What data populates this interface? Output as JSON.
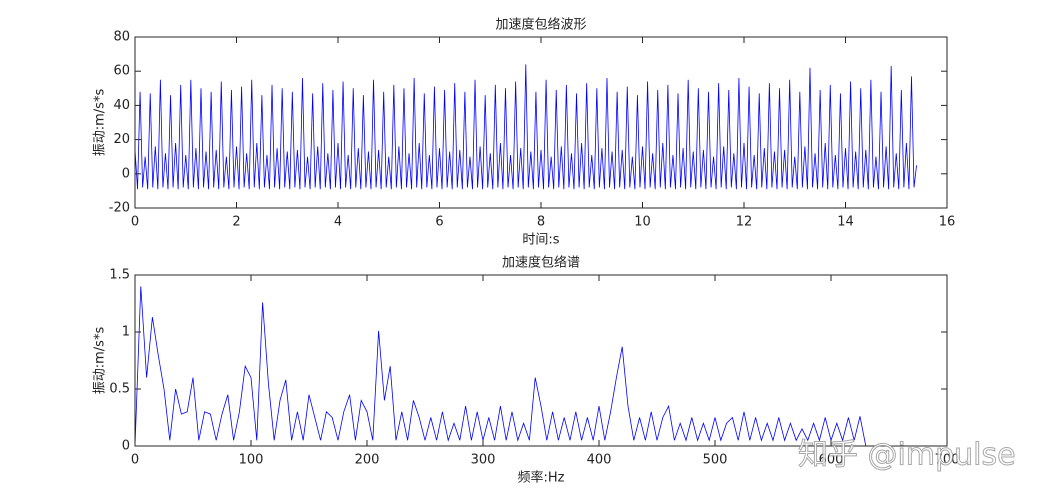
{
  "chart_data": [
    {
      "type": "line",
      "title": "加速度包络波形",
      "xlabel": "时间:s",
      "ylabel": "振动:m/s*s",
      "xlim": [
        0,
        16
      ],
      "ylim": [
        -20,
        80
      ],
      "xticks": [
        0,
        2,
        4,
        6,
        8,
        10,
        12,
        14,
        16
      ],
      "yticks": [
        -20,
        0,
        20,
        40,
        60,
        80
      ],
      "x": [
        0,
        0.05,
        0.1,
        0.15,
        0.2,
        0.25,
        0.3,
        0.35,
        0.4,
        0.45,
        0.5,
        0.55,
        0.6,
        0.65,
        0.7,
        0.75,
        0.8,
        0.85,
        0.9,
        0.95,
        1,
        1.05,
        1.1,
        1.15,
        1.2,
        1.25,
        1.3,
        1.35,
        1.4,
        1.45,
        1.5,
        1.55,
        1.6,
        1.65,
        1.7,
        1.75,
        1.8,
        1.85,
        1.9,
        1.95,
        2,
        2.05,
        2.1,
        2.15,
        2.2,
        2.25,
        2.3,
        2.35,
        2.4,
        2.45,
        2.5,
        2.55,
        2.6,
        2.65,
        2.7,
        2.75,
        2.8,
        2.85,
        2.9,
        2.95,
        3,
        3.05,
        3.1,
        3.15,
        3.2,
        3.25,
        3.3,
        3.35,
        3.4,
        3.45,
        3.5,
        3.55,
        3.6,
        3.65,
        3.7,
        3.75,
        3.8,
        3.85,
        3.9,
        3.95,
        4,
        4.05,
        4.1,
        4.15,
        4.2,
        4.25,
        4.3,
        4.35,
        4.4,
        4.45,
        4.5,
        4.55,
        4.6,
        4.65,
        4.7,
        4.75,
        4.8,
        4.85,
        4.9,
        4.95,
        5,
        5.05,
        5.1,
        5.15,
        5.2,
        5.25,
        5.3,
        5.35,
        5.4,
        5.45,
        5.5,
        5.55,
        5.6,
        5.65,
        5.7,
        5.75,
        5.8,
        5.85,
        5.9,
        5.95,
        6,
        6.05,
        6.1,
        6.15,
        6.2,
        6.25,
        6.3,
        6.35,
        6.4,
        6.45,
        6.5,
        6.55,
        6.6,
        6.65,
        6.7,
        6.75,
        6.8,
        6.85,
        6.9,
        6.95,
        7,
        7.05,
        7.1,
        7.15,
        7.2,
        7.25,
        7.3,
        7.35,
        7.4,
        7.45,
        7.5,
        7.55,
        7.6,
        7.65,
        7.7,
        7.75,
        7.8,
        7.85,
        7.9,
        7.95,
        8,
        8.05,
        8.1,
        8.15,
        8.2,
        8.25,
        8.3,
        8.35,
        8.4,
        8.45,
        8.5,
        8.55,
        8.6,
        8.65,
        8.7,
        8.75,
        8.8,
        8.85,
        8.9,
        8.95,
        9,
        9.05,
        9.1,
        9.15,
        9.2,
        9.25,
        9.3,
        9.35,
        9.4,
        9.45,
        9.5,
        9.55,
        9.6,
        9.65,
        9.7,
        9.75,
        9.8,
        9.85,
        9.9,
        9.95,
        10,
        10.05,
        10.1,
        10.15,
        10.2,
        10.25,
        10.3,
        10.35,
        10.4,
        10.45,
        10.5,
        10.55,
        10.6,
        10.65,
        10.7,
        10.75,
        10.8,
        10.85,
        10.9,
        10.95,
        11,
        11.05,
        11.1,
        11.15,
        11.2,
        11.25,
        11.3,
        11.35,
        11.4,
        11.45,
        11.5,
        11.55,
        11.6,
        11.65,
        11.7,
        11.75,
        11.8,
        11.85,
        11.9,
        11.95,
        12,
        12.05,
        12.1,
        12.15,
        12.2,
        12.25,
        12.3,
        12.35,
        12.4,
        12.45,
        12.5,
        12.55,
        12.6,
        12.65,
        12.7,
        12.75,
        12.8,
        12.85,
        12.9,
        12.95,
        13,
        13.05,
        13.1,
        13.15,
        13.2,
        13.25,
        13.3,
        13.35,
        13.4,
        13.45,
        13.5,
        13.55,
        13.6,
        13.65,
        13.7,
        13.75,
        13.8,
        13.85,
        13.9,
        13.95,
        14,
        14.05,
        14.1,
        14.15,
        14.2,
        14.25,
        14.3,
        14.35,
        14.4,
        14.45,
        14.5,
        14.55,
        14.6,
        14.65,
        14.7,
        14.75,
        14.8,
        14.85,
        14.9,
        14.95,
        15,
        15.05,
        15.1,
        15.15,
        15.2,
        15.25,
        15.3,
        15.35,
        15.4
      ],
      "series": [
        {
          "color": "#0000ff",
          "values": [
            14,
            -9,
            48,
            -8,
            10,
            -9,
            47,
            -8,
            16,
            -9,
            55,
            -8,
            12,
            -9,
            46,
            -8,
            18,
            -9,
            52,
            -8,
            11,
            -9,
            55,
            -8,
            15,
            -9,
            50,
            -8,
            13,
            -9,
            48,
            -8,
            14,
            -9,
            54,
            -8,
            10,
            -9,
            49,
            -8,
            16,
            -9,
            51,
            -8,
            12,
            -9,
            55,
            -8,
            18,
            -9,
            46,
            -8,
            11,
            -9,
            52,
            -8,
            15,
            -9,
            50,
            -8,
            13,
            -9,
            48,
            -8,
            14,
            -9,
            56,
            -8,
            10,
            -9,
            47,
            -8,
            16,
            -9,
            53,
            -8,
            12,
            -9,
            49,
            -8,
            18,
            -9,
            54,
            -8,
            11,
            -9,
            50,
            -8,
            15,
            -9,
            46,
            -8,
            13,
            -9,
            55,
            -8,
            14,
            -9,
            48,
            -8,
            10,
            -9,
            52,
            -8,
            16,
            -9,
            50,
            -8,
            12,
            -9,
            56,
            -8,
            18,
            -9,
            47,
            -8,
            11,
            -9,
            51,
            -8,
            15,
            -9,
            49,
            -8,
            13,
            -9,
            53,
            -8,
            14,
            -9,
            48,
            -8,
            10,
            -9,
            55,
            -8,
            16,
            -9,
            46,
            -8,
            12,
            -9,
            52,
            -8,
            18,
            -9,
            50,
            -8,
            11,
            -9,
            54,
            -8,
            15,
            -9,
            64,
            -8,
            13,
            -9,
            48,
            -8,
            14,
            -9,
            55,
            -8,
            10,
            -9,
            49,
            -8,
            16,
            -9,
            52,
            -8,
            12,
            -9,
            47,
            -8,
            18,
            -9,
            53,
            -8,
            11,
            -9,
            50,
            -8,
            15,
            -9,
            56,
            -8,
            13,
            -9,
            48,
            -8,
            14,
            -9,
            51,
            -8,
            10,
            -9,
            46,
            -8,
            16,
            -9,
            54,
            -8,
            12,
            -9,
            49,
            -8,
            18,
            -9,
            52,
            -8,
            11,
            -9,
            47,
            -8,
            15,
            -9,
            55,
            -8,
            13,
            -9,
            50,
            -8,
            14,
            -9,
            48,
            -8,
            10,
            -9,
            53,
            -8,
            16,
            -9,
            49,
            -8,
            12,
            -9,
            56,
            -8,
            18,
            -9,
            51,
            -8,
            11,
            -9,
            47,
            -8,
            15,
            -9,
            53,
            -8,
            13,
            -9,
            50,
            -8,
            14,
            -9,
            55,
            -8,
            10,
            -9,
            48,
            -8,
            16,
            -9,
            62,
            -8,
            12,
            -9,
            49,
            -8,
            18,
            -9,
            52,
            -8,
            11,
            -9,
            47,
            -8,
            15,
            -9,
            54,
            -8,
            13,
            -9,
            50,
            -8,
            14,
            -9,
            55,
            -8,
            10,
            -9,
            48,
            -8,
            16,
            -9,
            63,
            -8,
            12,
            -9,
            49,
            -8,
            18,
            -9,
            57,
            -8,
            5
          ]
        }
      ]
    },
    {
      "type": "line",
      "title": "加速度包络谱",
      "xlabel": "频率:Hz",
      "ylabel": "振动:m/s*s",
      "xlim": [
        0,
        700
      ],
      "ylim": [
        0,
        1.5
      ],
      "xticks": [
        0,
        100,
        200,
        300,
        400,
        500,
        600,
        700
      ],
      "yticks": [
        0,
        0.5,
        1,
        1.5
      ],
      "x": [
        0,
        5,
        10,
        15,
        20,
        25,
        30,
        35,
        40,
        45,
        50,
        55,
        60,
        65,
        70,
        75,
        80,
        85,
        90,
        95,
        100,
        105,
        110,
        115,
        120,
        125,
        130,
        135,
        140,
        145,
        150,
        155,
        160,
        165,
        170,
        175,
        180,
        185,
        190,
        195,
        200,
        205,
        210,
        215,
        220,
        225,
        230,
        235,
        240,
        245,
        250,
        255,
        260,
        265,
        270,
        275,
        280,
        285,
        290,
        295,
        300,
        305,
        310,
        315,
        320,
        325,
        330,
        335,
        340,
        345,
        350,
        355,
        360,
        365,
        370,
        375,
        380,
        385,
        390,
        395,
        400,
        405,
        410,
        415,
        420,
        425,
        430,
        435,
        440,
        445,
        450,
        455,
        460,
        465,
        470,
        475,
        480,
        485,
        490,
        495,
        500,
        505,
        510,
        515,
        520,
        525,
        530,
        535,
        540,
        545,
        550,
        555,
        560,
        565,
        570,
        575,
        580,
        585,
        590,
        595,
        600,
        605,
        610,
        615,
        620,
        625,
        630
      ],
      "series": [
        {
          "color": "#0000ff",
          "values": [
            0,
            1.4,
            0.6,
            1.13,
            0.8,
            0.5,
            0.05,
            0.5,
            0.28,
            0.3,
            0.6,
            0.05,
            0.3,
            0.28,
            0.05,
            0.28,
            0.45,
            0.05,
            0.3,
            0.7,
            0.6,
            0.05,
            1.26,
            0.55,
            0.05,
            0.4,
            0.58,
            0.05,
            0.3,
            0.05,
            0.45,
            0.25,
            0.05,
            0.3,
            0.25,
            0.05,
            0.3,
            0.45,
            0.05,
            0.4,
            0.3,
            0.05,
            1.01,
            0.4,
            0.7,
            0.05,
            0.3,
            0.05,
            0.4,
            0.25,
            0.05,
            0.25,
            0.05,
            0.3,
            0.05,
            0.2,
            0.05,
            0.35,
            0.05,
            0.3,
            0.05,
            0.25,
            0.05,
            0.35,
            0.05,
            0.3,
            0.05,
            0.2,
            0.05,
            0.6,
            0.35,
            0.05,
            0.3,
            0.05,
            0.25,
            0.05,
            0.3,
            0.05,
            0.25,
            0.05,
            0.35,
            0.05,
            0.3,
            0.6,
            0.87,
            0.35,
            0.05,
            0.25,
            0.05,
            0.3,
            0.05,
            0.25,
            0.35,
            0.05,
            0.2,
            0.05,
            0.25,
            0.05,
            0.2,
            0.05,
            0.25,
            0.05,
            0.2,
            0.25,
            0.05,
            0.3,
            0.05,
            0.25,
            0.05,
            0.2,
            0.05,
            0.25,
            0.05,
            0.2,
            0.05,
            0.15,
            0.05,
            0.2,
            0.05,
            0.25,
            0.05,
            0.2,
            0.05,
            0.25,
            0.05,
            0.26,
            0
          ]
        }
      ]
    }
  ],
  "watermark": "知乎 @impulse"
}
